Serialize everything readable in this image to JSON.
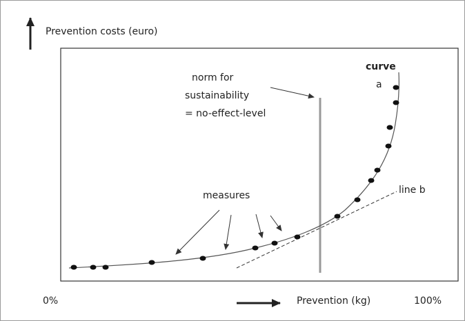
{
  "y_axis_label": "Prevention costs (euro)",
  "norm_label": [
    "norm for",
    "sustainability",
    "= no-effect-level"
  ],
  "curve_label": {
    "title": "curve",
    "name": "a"
  },
  "measures_label": "measures",
  "line_label": "line b",
  "x_axis": {
    "start": "0%",
    "label": "Prevention (kg)",
    "end": "100%"
  }
}
